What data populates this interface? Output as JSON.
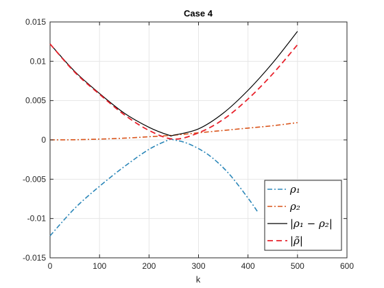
{
  "chart_data": {
    "type": "line",
    "title": "Case 4",
    "xlabel": "k",
    "ylabel": "",
    "xlim": [
      0,
      600
    ],
    "ylim": [
      -0.015,
      0.015
    ],
    "xticks": [
      0,
      100,
      200,
      300,
      400,
      500,
      600
    ],
    "yticks": [
      -0.015,
      -0.01,
      -0.005,
      0,
      0.005,
      0.01,
      0.015
    ],
    "xtick_labels": [
      "0",
      "100",
      "200",
      "300",
      "400",
      "500",
      "600"
    ],
    "ytick_labels": [
      "-0.015",
      "-0.01",
      "-0.005",
      "0",
      "0.005",
      "0.01",
      "0.015"
    ],
    "grid": true,
    "legend_position": "bottom-right",
    "series": [
      {
        "name": "ρ1",
        "color": "#2a86b8",
        "dash": "dash-dot",
        "x": [
          0,
          50,
          100,
          150,
          200,
          240,
          250,
          280,
          320,
          360,
          400,
          420
        ],
        "y": [
          -0.0122,
          -0.0087,
          -0.0059,
          -0.0034,
          -0.0012,
          0.0,
          0.0,
          -0.0005,
          -0.0019,
          -0.0042,
          -0.0074,
          -0.0092
        ]
      },
      {
        "name": "ρ2",
        "color": "#d95319",
        "dash": "dash-dot",
        "x": [
          0,
          50,
          100,
          150,
          200,
          250,
          300,
          350,
          400,
          450,
          500
        ],
        "y": [
          0.0,
          2e-05,
          0.0001,
          0.00022,
          0.0004,
          0.0006,
          0.0009,
          0.0012,
          0.0015,
          0.0018,
          0.0022
        ]
      },
      {
        "name": "|ρ1 − ρ2|",
        "color": "#000000",
        "dash": "solid",
        "x": [
          0,
          50,
          100,
          150,
          200,
          240,
          250,
          300,
          350,
          400,
          450,
          500
        ],
        "y": [
          0.0122,
          0.0087,
          0.0059,
          0.0034,
          0.0016,
          0.0006,
          0.0006,
          0.0014,
          0.0034,
          0.0063,
          0.0098,
          0.0138
        ]
      },
      {
        "name": "|ρ̃|",
        "color": "#e8202a",
        "dash": "dashed",
        "x": [
          0,
          50,
          100,
          150,
          200,
          250,
          300,
          350,
          400,
          450,
          500
        ],
        "y": [
          0.0122,
          0.0086,
          0.0058,
          0.0032,
          0.0012,
          0.0001,
          0.0009,
          0.0026,
          0.0052,
          0.0084,
          0.0121
        ]
      }
    ],
    "legend": [
      {
        "label": "ρ₁"
      },
      {
        "label": "ρ₂"
      },
      {
        "label": "|ρ₁ − ρ₂|"
      },
      {
        "label": "|ρ̃|"
      }
    ]
  }
}
